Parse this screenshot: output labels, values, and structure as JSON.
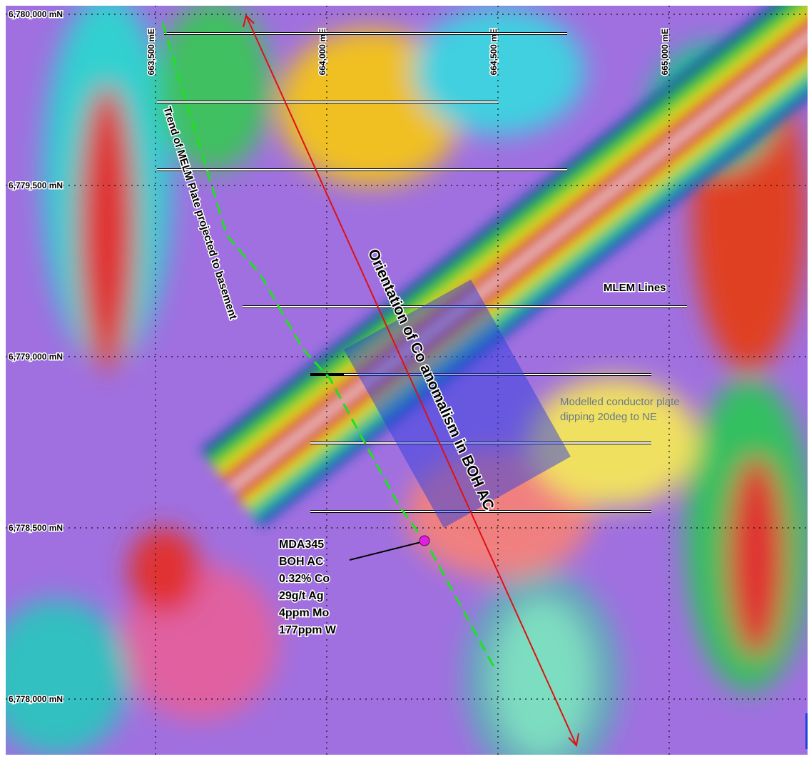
{
  "grid": {
    "northings": [
      "6,780,000 mN",
      "6,779,500 mN",
      "6,779,000 mN",
      "6,778,500 mN",
      "6,778,000 mN"
    ],
    "eastings": [
      "663,500 mE",
      "664,000 mE",
      "664,500 mE",
      "665,000 mE"
    ]
  },
  "annotations": {
    "trend": "Trend of MELM Plate projected to basement",
    "orientation": "Orientation of Co anomalism in BOH AC",
    "mlem": "MLEM Lines",
    "plate": [
      "Modelled conductor plate",
      "dipping 20deg to NE"
    ]
  },
  "drillhole": {
    "lines": [
      "MDA345",
      "BOH AC",
      "0.32% Co",
      "29g/t Ag",
      "4ppm Mo",
      "177ppm W"
    ]
  }
}
